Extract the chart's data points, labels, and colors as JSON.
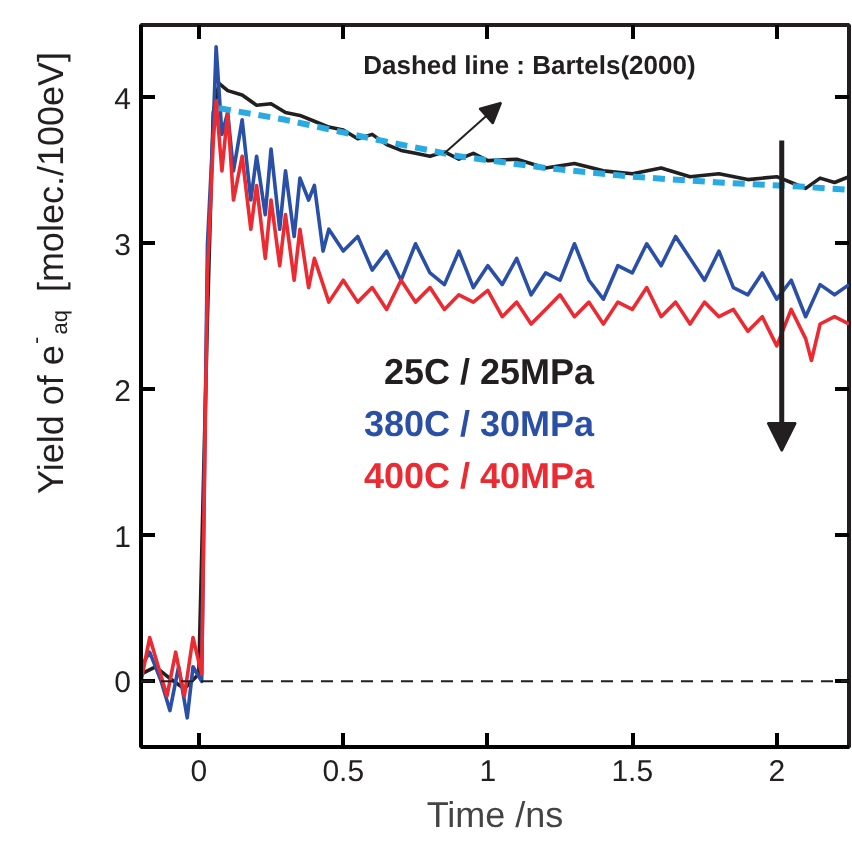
{
  "chart_data": {
    "type": "line",
    "xlabel": "Time /ns",
    "ylabel": "Yield of e$^{-}$$_{aq}$ [molec./100eV]",
    "xlim": [
      -0.2,
      2.25
    ],
    "ylim": [
      -0.45,
      4.5
    ],
    "xticks": [
      0,
      0.5,
      1,
      1.5,
      2
    ],
    "yticks": [
      0,
      1,
      2,
      3,
      4
    ],
    "grid": false,
    "marker": "none",
    "series": [
      {
        "name": "25C / 25MPa",
        "color": "#231f20",
        "x": [
          -0.2,
          -0.15,
          -0.1,
          -0.05,
          0,
          0.03,
          0.05,
          0.07,
          0.1,
          0.15,
          0.2,
          0.25,
          0.3,
          0.35,
          0.4,
          0.45,
          0.5,
          0.55,
          0.6,
          0.65,
          0.7,
          0.75,
          0.8,
          0.85,
          0.9,
          0.95,
          1.0,
          1.1,
          1.2,
          1.3,
          1.4,
          1.5,
          1.6,
          1.7,
          1.8,
          1.9,
          2.0,
          2.05,
          2.1,
          2.15,
          2.2,
          2.25
        ],
        "values": [
          0.05,
          0.1,
          0.02,
          -0.05,
          0.05,
          2.5,
          3.9,
          4.1,
          4.05,
          4.02,
          3.95,
          3.96,
          3.9,
          3.88,
          3.84,
          3.8,
          3.78,
          3.72,
          3.75,
          3.68,
          3.64,
          3.62,
          3.6,
          3.63,
          3.58,
          3.62,
          3.57,
          3.58,
          3.52,
          3.55,
          3.5,
          3.48,
          3.52,
          3.46,
          3.48,
          3.44,
          3.46,
          3.42,
          3.38,
          3.45,
          3.42,
          3.46
        ]
      },
      {
        "name": "380C / 30MPa",
        "color": "#2a4fa6",
        "x": [
          -0.2,
          -0.17,
          -0.13,
          -0.1,
          -0.07,
          -0.04,
          -0.02,
          0.01,
          0.03,
          0.05,
          0.06,
          0.08,
          0.1,
          0.12,
          0.15,
          0.18,
          0.2,
          0.23,
          0.25,
          0.28,
          0.3,
          0.33,
          0.35,
          0.38,
          0.4,
          0.43,
          0.45,
          0.5,
          0.55,
          0.6,
          0.65,
          0.7,
          0.75,
          0.8,
          0.85,
          0.9,
          0.95,
          1.0,
          1.05,
          1.1,
          1.15,
          1.2,
          1.25,
          1.3,
          1.35,
          1.4,
          1.45,
          1.5,
          1.55,
          1.6,
          1.65,
          1.7,
          1.75,
          1.8,
          1.85,
          1.9,
          1.95,
          2.0,
          2.05,
          2.1,
          2.15,
          2.2,
          2.25
        ],
        "values": [
          0.1,
          0.2,
          0.0,
          -0.2,
          0.1,
          -0.25,
          0.1,
          0.0,
          3.0,
          3.8,
          4.35,
          3.75,
          3.9,
          3.5,
          3.85,
          3.3,
          3.6,
          3.2,
          3.65,
          3.1,
          3.5,
          3.05,
          3.45,
          3.3,
          3.4,
          2.95,
          3.1,
          2.95,
          3.05,
          2.82,
          2.95,
          2.75,
          3.0,
          2.8,
          2.72,
          2.95,
          2.7,
          2.85,
          2.72,
          2.9,
          2.65,
          2.8,
          2.75,
          3.0,
          2.75,
          2.62,
          2.85,
          2.8,
          3.0,
          2.85,
          3.05,
          2.9,
          2.75,
          2.95,
          2.7,
          2.65,
          2.8,
          2.62,
          2.75,
          2.5,
          2.72,
          2.65,
          2.72
        ]
      },
      {
        "name": "400C / 40MPa",
        "color": "#ec2a32",
        "x": [
          -0.2,
          -0.17,
          -0.14,
          -0.11,
          -0.08,
          -0.05,
          -0.02,
          0.01,
          0.03,
          0.05,
          0.06,
          0.08,
          0.1,
          0.12,
          0.15,
          0.18,
          0.2,
          0.23,
          0.25,
          0.28,
          0.3,
          0.33,
          0.35,
          0.38,
          0.4,
          0.45,
          0.5,
          0.55,
          0.6,
          0.65,
          0.7,
          0.75,
          0.8,
          0.85,
          0.9,
          0.95,
          1.0,
          1.05,
          1.1,
          1.15,
          1.2,
          1.25,
          1.3,
          1.35,
          1.4,
          1.45,
          1.5,
          1.55,
          1.6,
          1.65,
          1.7,
          1.75,
          1.8,
          1.85,
          1.9,
          1.95,
          2.0,
          2.05,
          2.1,
          2.12,
          2.15,
          2.2,
          2.25
        ],
        "values": [
          0.0,
          0.3,
          0.1,
          -0.1,
          0.2,
          -0.1,
          0.3,
          0.05,
          2.8,
          3.7,
          3.98,
          3.5,
          3.9,
          3.3,
          3.6,
          3.1,
          3.4,
          2.9,
          3.3,
          2.85,
          3.2,
          2.75,
          3.1,
          2.7,
          2.9,
          2.6,
          2.75,
          2.6,
          2.7,
          2.55,
          2.75,
          2.6,
          2.7,
          2.55,
          2.65,
          2.6,
          2.68,
          2.5,
          2.6,
          2.45,
          2.55,
          2.65,
          2.5,
          2.6,
          2.45,
          2.6,
          2.55,
          2.7,
          2.5,
          2.6,
          2.45,
          2.6,
          2.5,
          2.55,
          2.4,
          2.5,
          2.3,
          2.55,
          2.35,
          2.2,
          2.45,
          2.5,
          2.45
        ]
      },
      {
        "color": "#29abe2",
        "line_style": "dashed",
        "x": [
          0.07,
          0.3,
          0.6,
          0.9,
          1.2,
          1.5,
          1.8,
          2.1,
          2.25
        ],
        "values": [
          3.93,
          3.85,
          3.72,
          3.6,
          3.52,
          3.46,
          3.42,
          3.39,
          3.37
        ]
      }
    ],
    "ref_lines": [
      {
        "axis": "y",
        "value": 0,
        "color": "#231f20",
        "line_style": "dashed"
      }
    ],
    "annotations": [
      {
        "text": "Dashed line : Bartels(2000)",
        "x": 0.85,
        "y": 3.62
      }
    ]
  }
}
